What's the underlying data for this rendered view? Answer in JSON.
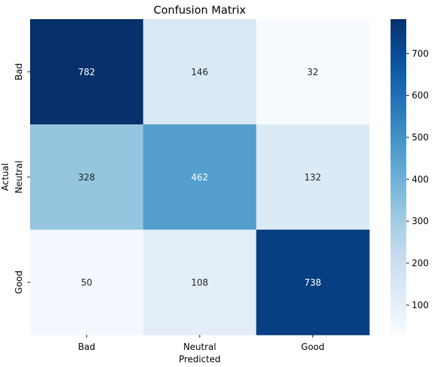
{
  "chart_data": {
    "type": "heatmap",
    "title": "Confusion Matrix",
    "xlabel": "Predicted",
    "ylabel": "Actual",
    "x_categories": [
      "Bad",
      "Neutral",
      "Good"
    ],
    "y_categories": [
      "Bad",
      "Neutral",
      "Good"
    ],
    "values": [
      [
        782,
        146,
        32
      ],
      [
        328,
        462,
        132
      ],
      [
        50,
        108,
        738
      ]
    ],
    "colormap": "Blues",
    "colorbar": {
      "range": [
        32,
        782
      ],
      "ticks": [
        100,
        200,
        300,
        400,
        500,
        600,
        700
      ]
    },
    "grid": false,
    "annotations": true
  }
}
